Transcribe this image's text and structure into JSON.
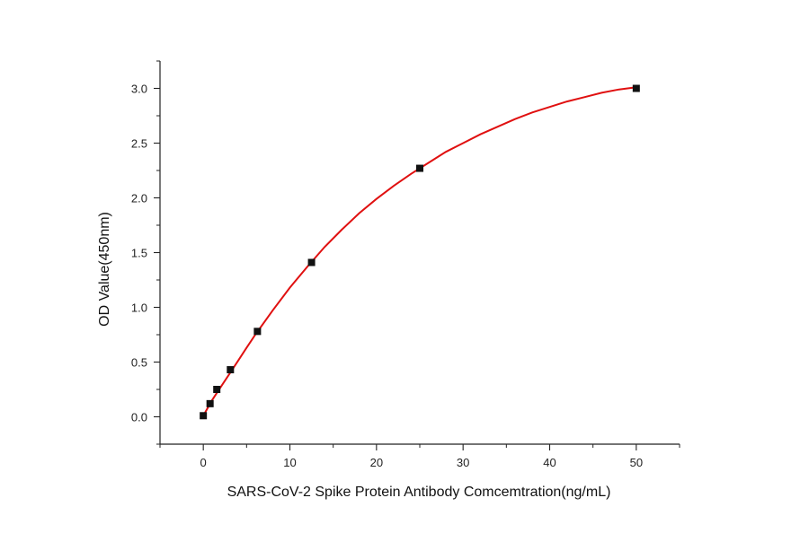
{
  "chart_data": {
    "type": "scatter",
    "title": "",
    "xlabel": "SARS-CoV-2 Spike Protein Antibody Comcemtration(ng/mL)",
    "ylabel": "OD Value(450nm)",
    "xlim": [
      -5,
      55
    ],
    "ylim": [
      -0.25,
      3.25
    ],
    "x_ticks": [
      0,
      10,
      20,
      30,
      40,
      50
    ],
    "x_tick_labels": [
      "0",
      "10",
      "20",
      "30",
      "40",
      "50"
    ],
    "y_ticks": [
      0.0,
      0.5,
      1.0,
      1.5,
      2.0,
      2.5,
      3.0
    ],
    "y_tick_labels": [
      "0.0",
      "0.5",
      "1.0",
      "1.5",
      "2.0",
      "2.5",
      "3.0"
    ],
    "grid": false,
    "legend": "none",
    "series": [
      {
        "kind": "points",
        "color": "#111111",
        "x": [
          0,
          0.78,
          1.56,
          3.13,
          6.25,
          12.5,
          25,
          50
        ],
        "y": [
          0.01,
          0.12,
          0.25,
          0.43,
          0.78,
          1.41,
          2.27,
          3.0
        ]
      },
      {
        "kind": "fit-curve",
        "color": "#e01010",
        "x": [
          0,
          1,
          2,
          3,
          4,
          5,
          6,
          8,
          10,
          12,
          14,
          16,
          18,
          20,
          22,
          24,
          26,
          28,
          30,
          32,
          34,
          36,
          38,
          40,
          42,
          44,
          46,
          48,
          50
        ],
        "y": [
          0.01,
          0.15,
          0.27,
          0.39,
          0.51,
          0.63,
          0.75,
          0.97,
          1.18,
          1.37,
          1.55,
          1.71,
          1.86,
          1.99,
          2.11,
          2.22,
          2.32,
          2.42,
          2.5,
          2.58,
          2.65,
          2.72,
          2.78,
          2.83,
          2.88,
          2.92,
          2.96,
          2.99,
          3.01
        ]
      }
    ]
  }
}
